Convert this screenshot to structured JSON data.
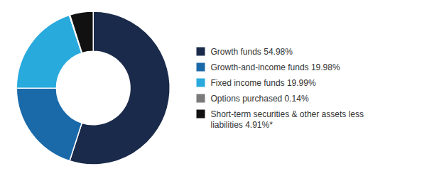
{
  "chart_data": {
    "type": "donut",
    "values": [
      54.98,
      19.98,
      19.99,
      0.14,
      4.91
    ],
    "colors": [
      "#1a2a4a",
      "#1a6aaa",
      "#29aadd",
      "#7a7a7a",
      "#111111"
    ],
    "labels": [
      "Growth funds 54.98%",
      "Growth-and-income funds 19.98%",
      "Fixed income funds 19.99%",
      "Options purchased 0.14%",
      "Short-term securities & other assets less\nliabilities 4.91%*"
    ],
    "legend": "right"
  }
}
